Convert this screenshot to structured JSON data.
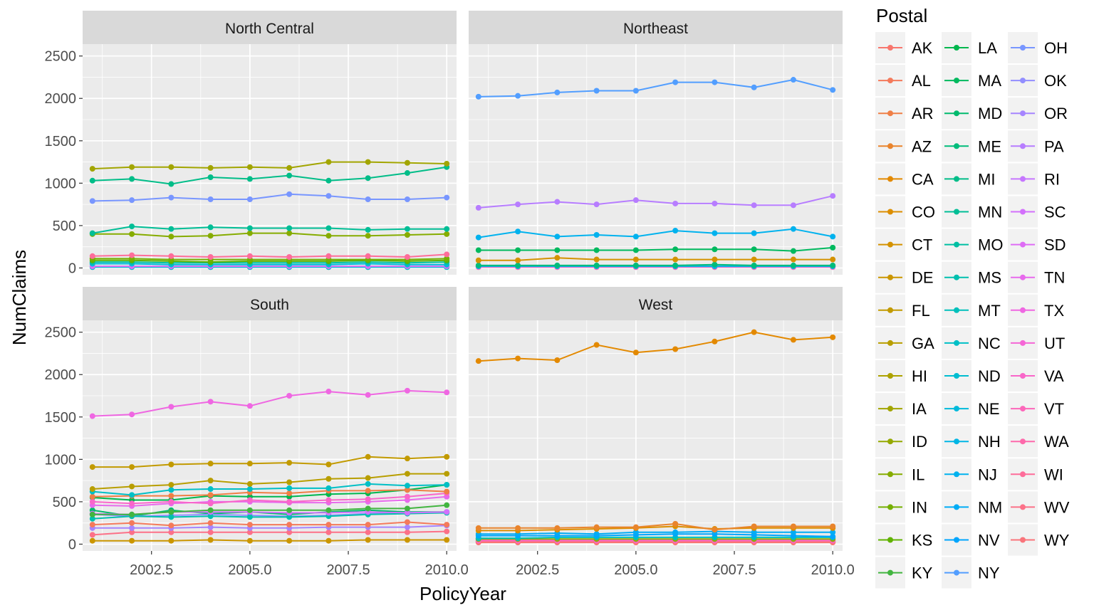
{
  "chart_data": {
    "type": "line",
    "xlabel": "PolicyYear",
    "ylabel": "NumClaims",
    "x": [
      2001,
      2002,
      2003,
      2004,
      2005,
      2006,
      2007,
      2008,
      2009,
      2010
    ],
    "xlim": [
      2000.75,
      2010.25
    ],
    "ylim": [
      -80,
      2640
    ],
    "x_ticks": [
      2002.5,
      2005.0,
      2007.5,
      2010.0
    ],
    "x_tick_labels": [
      "2002.5",
      "2005.0",
      "2007.5",
      "2010.0"
    ],
    "y_ticks": [
      0,
      500,
      1000,
      1500,
      2000,
      2500
    ],
    "y_tick_labels": [
      "0",
      "500",
      "1000",
      "1500",
      "2000",
      "2500"
    ],
    "grid": true,
    "legend": {
      "title": "Postal",
      "placement": "right",
      "entries": [
        {
          "label": "AK",
          "color": "#F8766D"
        },
        {
          "label": "AL",
          "color": "#F47A5B"
        },
        {
          "label": "AR",
          "color": "#EF7F46"
        },
        {
          "label": "AZ",
          "color": "#E9842C"
        },
        {
          "label": "CA",
          "color": "#E38900"
        },
        {
          "label": "CO",
          "color": "#DC8E00"
        },
        {
          "label": "CT",
          "color": "#D49200"
        },
        {
          "label": "DE",
          "color": "#CB9600"
        },
        {
          "label": "FL",
          "color": "#C29A00"
        },
        {
          "label": "GA",
          "color": "#B89E00"
        },
        {
          "label": "HI",
          "color": "#ADA200"
        },
        {
          "label": "IA",
          "color": "#A2A500"
        },
        {
          "label": "ID",
          "color": "#95A900"
        },
        {
          "label": "IL",
          "color": "#86AC00"
        },
        {
          "label": "IN",
          "color": "#75AF00"
        },
        {
          "label": "KS",
          "color": "#60B200"
        },
        {
          "label": "KY",
          "color": "#42B540"
        },
        {
          "label": "LA",
          "color": "#00B74E"
        },
        {
          "label": "MA",
          "color": "#00B95E"
        },
        {
          "label": "MD",
          "color": "#00BA6D"
        },
        {
          "label": "ME",
          "color": "#00BC7B"
        },
        {
          "label": "MI",
          "color": "#00BD88"
        },
        {
          "label": "MN",
          "color": "#00BE96"
        },
        {
          "label": "MO",
          "color": "#00BFA3"
        },
        {
          "label": "MS",
          "color": "#00C0AF"
        },
        {
          "label": "MT",
          "color": "#00C0BB"
        },
        {
          "label": "NC",
          "color": "#00BFC6"
        },
        {
          "label": "ND",
          "color": "#00BDD1"
        },
        {
          "label": "NE",
          "color": "#00BADB"
        },
        {
          "label": "NH",
          "color": "#00B6E5"
        },
        {
          "label": "NJ",
          "color": "#00B2EE"
        },
        {
          "label": "NM",
          "color": "#00ACF6"
        },
        {
          "label": "NV",
          "color": "#00A5FD"
        },
        {
          "label": "NY",
          "color": "#529EFF"
        },
        {
          "label": "OH",
          "color": "#7896FF"
        },
        {
          "label": "OK",
          "color": "#928EFF"
        },
        {
          "label": "OR",
          "color": "#A685FF"
        },
        {
          "label": "PA",
          "color": "#B77DFF"
        },
        {
          "label": "RI",
          "color": "#C676FF"
        },
        {
          "label": "SC",
          "color": "#D370FC"
        },
        {
          "label": "SD",
          "color": "#DE6CF5"
        },
        {
          "label": "TN",
          "color": "#E76AEC"
        },
        {
          "label": "TX",
          "color": "#EF67E2"
        },
        {
          "label": "UT",
          "color": "#F566D6"
        },
        {
          "label": "VA",
          "color": "#F966C9"
        },
        {
          "label": "VT",
          "color": "#FC67BA"
        },
        {
          "label": "WA",
          "color": "#FE69AB"
        },
        {
          "label": "WI",
          "color": "#FE6D9A"
        },
        {
          "label": "WV",
          "color": "#FC7188"
        },
        {
          "label": "WY",
          "color": "#F9747B"
        }
      ]
    },
    "facets": [
      {
        "name": "North Central",
        "series": [
          {
            "state": "IA",
            "values": [
              1170,
              1190,
              1190,
              1180,
              1190,
              1180,
              1250,
              1250,
              1240,
              1230
            ]
          },
          {
            "state": "MI",
            "values": [
              1030,
              1050,
              990,
              1070,
              1050,
              1090,
              1030,
              1060,
              1120,
              1190
            ]
          },
          {
            "state": "OH",
            "values": [
              790,
              800,
              830,
              810,
              810,
              870,
              850,
              810,
              810,
              830
            ]
          },
          {
            "state": "MN",
            "values": [
              410,
              490,
              460,
              480,
              470,
              470,
              470,
              450,
              460,
              460
            ]
          },
          {
            "state": "IL",
            "values": [
              400,
              400,
              370,
              380,
              410,
              410,
              380,
              380,
              390,
              400
            ]
          },
          {
            "state": "WI",
            "values": [
              140,
              150,
              140,
              130,
              140,
              130,
              140,
              140,
              130,
              160
            ]
          },
          {
            "state": "IN",
            "values": [
              110,
              110,
              100,
              100,
              100,
              100,
              100,
              100,
              100,
              110
            ]
          },
          {
            "state": "KS",
            "values": [
              90,
              90,
              80,
              70,
              80,
              80,
              80,
              90,
              80,
              90
            ]
          },
          {
            "state": "MO",
            "values": [
              70,
              70,
              60,
              60,
              60,
              60,
              60,
              70,
              60,
              70
            ]
          },
          {
            "state": "NE",
            "values": [
              50,
              50,
              40,
              40,
              40,
              40,
              40,
              50,
              40,
              40
            ]
          },
          {
            "state": "SD",
            "values": [
              20,
              20,
              20,
              20,
              20,
              20,
              20,
              20,
              20,
              20
            ]
          },
          {
            "state": "ND",
            "values": [
              10,
              10,
              10,
              10,
              10,
              10,
              10,
              10,
              10,
              10
            ]
          }
        ]
      },
      {
        "name": "Northeast",
        "series": [
          {
            "state": "NY",
            "values": [
              2020,
              2030,
              2070,
              2090,
              2090,
              2190,
              2190,
              2130,
              2220,
              2100
            ]
          },
          {
            "state": "PA",
            "values": [
              710,
              750,
              780,
              750,
              800,
              760,
              760,
              740,
              740,
              850
            ]
          },
          {
            "state": "NJ",
            "values": [
              360,
              430,
              370,
              390,
              370,
              440,
              410,
              410,
              460,
              370
            ]
          },
          {
            "state": "MA",
            "values": [
              210,
              210,
              210,
              210,
              210,
              220,
              220,
              220,
              200,
              240
            ]
          },
          {
            "state": "CT",
            "values": [
              90,
              90,
              120,
              100,
              100,
              100,
              100,
              100,
              100,
              100
            ]
          },
          {
            "state": "ME",
            "values": [
              30,
              30,
              30,
              30,
              30,
              30,
              40,
              30,
              30,
              30
            ]
          },
          {
            "state": "NH",
            "values": [
              20,
              20,
              20,
              20,
              20,
              20,
              20,
              20,
              20,
              20
            ]
          },
          {
            "state": "RI",
            "values": [
              20,
              30,
              20,
              20,
              30,
              20,
              20,
              20,
              20,
              20
            ]
          },
          {
            "state": "VT",
            "values": [
              10,
              10,
              10,
              10,
              10,
              10,
              10,
              10,
              10,
              10
            ]
          }
        ]
      },
      {
        "name": "South",
        "series": [
          {
            "state": "TX",
            "values": [
              1510,
              1530,
              1620,
              1680,
              1630,
              1750,
              1800,
              1760,
              1810,
              1790
            ]
          },
          {
            "state": "FL",
            "values": [
              910,
              910,
              940,
              950,
              950,
              960,
              940,
              1030,
              1010,
              1030
            ]
          },
          {
            "state": "GA",
            "values": [
              650,
              680,
              700,
              750,
              710,
              730,
              770,
              780,
              830,
              830
            ]
          },
          {
            "state": "NC",
            "values": [
              620,
              580,
              640,
              650,
              650,
              660,
              660,
              710,
              690,
              700
            ]
          },
          {
            "state": "AR",
            "values": [
              560,
              570,
              570,
              580,
              610,
              600,
              630,
              630,
              640,
              620
            ]
          },
          {
            "state": "VA",
            "values": [
              500,
              480,
              500,
              480,
              520,
              500,
              520,
              530,
              560,
              600
            ]
          },
          {
            "state": "LA",
            "values": [
              550,
              520,
              520,
              570,
              560,
              560,
              590,
              600,
              640,
              700
            ]
          },
          {
            "state": "TN",
            "values": [
              460,
              450,
              480,
              500,
              500,
              490,
              490,
              500,
              520,
              560
            ]
          },
          {
            "state": "KY",
            "values": [
              350,
              350,
              380,
              400,
              400,
              400,
              400,
              420,
              420,
              460
            ]
          },
          {
            "state": "SC",
            "values": [
              360,
              350,
              380,
              380,
              380,
              370,
              370,
              380,
              370,
              380
            ]
          },
          {
            "state": "MS",
            "values": [
              300,
              330,
              320,
              330,
              320,
              320,
              330,
              350,
              360,
              370
            ]
          },
          {
            "state": "OK",
            "values": [
              350,
              330,
              340,
              350,
              340,
              330,
              340,
              360,
              370,
              380
            ]
          },
          {
            "state": "AL",
            "values": [
              230,
              250,
              220,
              250,
              230,
              230,
              230,
              230,
              260,
              230
            ]
          },
          {
            "state": "OR",
            "values": [
              190,
              190,
              190,
              200,
              190,
              190,
              200,
              200,
              200,
              220
            ]
          },
          {
            "state": "WV",
            "values": [
              110,
              140,
              140,
              140,
              140,
              140,
              140,
              140,
              140,
              150
            ]
          },
          {
            "state": "MD",
            "values": [
              400,
              330,
              400,
              360,
              380,
              350,
              380,
              400,
              380,
              380
            ]
          },
          {
            "state": "DE",
            "values": [
              40,
              40,
              40,
              50,
              40,
              40,
              40,
              50,
              50,
              50
            ]
          }
        ]
      },
      {
        "name": "West",
        "series": [
          {
            "state": "CA",
            "values": [
              2160,
              2190,
              2170,
              2350,
              2260,
              2300,
              2390,
              2500,
              2410,
              2440
            ]
          },
          {
            "state": "AZ",
            "values": [
              190,
              190,
              190,
              200,
              200,
              240,
              170,
              210,
              210,
              210
            ]
          },
          {
            "state": "CO",
            "values": [
              160,
              160,
              170,
              180,
              190,
              210,
              180,
              190,
              190,
              190
            ]
          },
          {
            "state": "NM",
            "values": [
              120,
              120,
              130,
              120,
              140,
              140,
              150,
              140,
              140,
              140
            ]
          },
          {
            "state": "NV",
            "values": [
              100,
              100,
              100,
              100,
              110,
              120,
              120,
              110,
              100,
              90
            ]
          },
          {
            "state": "MT",
            "values": [
              70,
              70,
              80,
              80,
              80,
              80,
              80,
              80,
              80,
              80
            ]
          },
          {
            "state": "ID",
            "values": [
              60,
              60,
              60,
              60,
              60,
              60,
              60,
              60,
              60,
              60
            ]
          },
          {
            "state": "UT",
            "values": [
              50,
              50,
              50,
              50,
              50,
              50,
              50,
              50,
              50,
              50
            ]
          },
          {
            "state": "WA",
            "values": [
              40,
              40,
              40,
              40,
              40,
              40,
              40,
              40,
              40,
              40
            ]
          },
          {
            "state": "WY",
            "values": [
              30,
              30,
              30,
              30,
              30,
              30,
              30,
              30,
              30,
              30
            ]
          },
          {
            "state": "AK",
            "values": [
              20,
              20,
              20,
              20,
              20,
              20,
              20,
              20,
              20,
              20
            ]
          },
          {
            "state": "HI",
            "values": [
              30,
              30,
              30,
              30,
              30,
              30,
              30,
              30,
              30,
              30
            ]
          }
        ]
      }
    ]
  }
}
